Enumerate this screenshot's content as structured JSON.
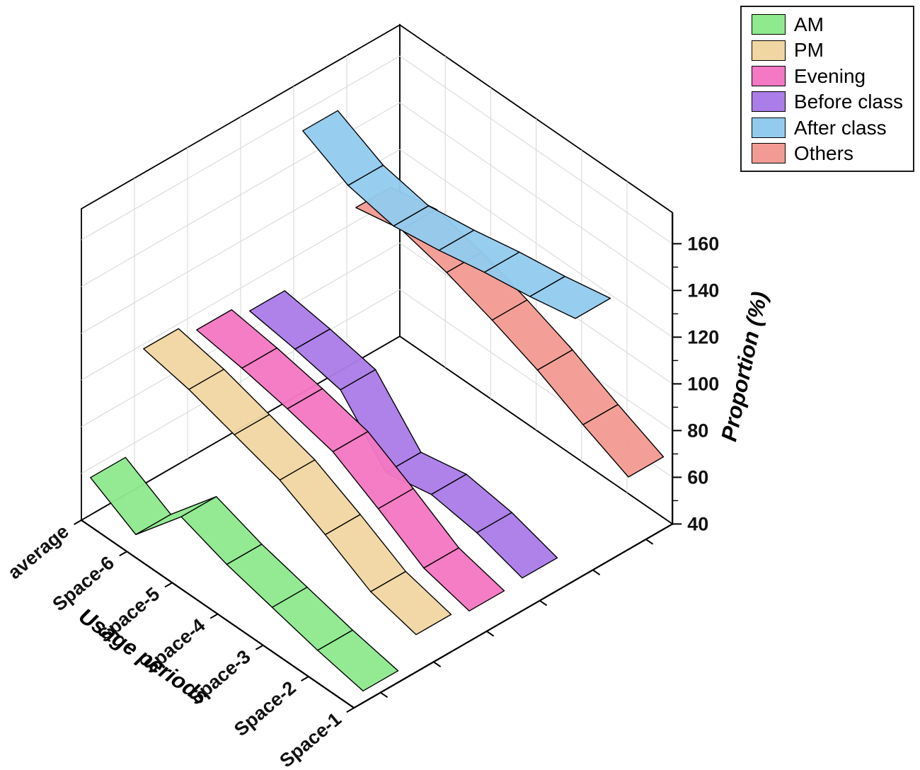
{
  "chart_data": {
    "type": "ribbon3d",
    "title": "",
    "xlabel": "Usage periods",
    "zlabel": "Proportion (%)",
    "categories": [
      "average",
      "Space-6",
      "Space-5",
      "Space-4",
      "Space-3",
      "Space-2",
      "Space-1"
    ],
    "series": [
      {
        "name": "AM",
        "color": "#8FE98F",
        "values": [
          56,
          45,
          66,
          59,
          54,
          49,
          45
        ]
      },
      {
        "name": "PM",
        "color": "#F0D6A2",
        "values": [
          98,
          94,
          88,
          82,
          72,
          61,
          56
        ]
      },
      {
        "name": "Evening",
        "color": "#F478C3",
        "values": [
          93,
          90,
          86,
          81,
          70,
          58,
          53
        ]
      },
      {
        "name": "Before class",
        "color": "#AB7DE8",
        "values": [
          88,
          85,
          81,
          59,
          63,
          60,
          54
        ]
      },
      {
        "name": "After class",
        "color": "#93CBEE",
        "values": [
          152,
          142,
          138,
          141,
          145,
          148,
          152
        ]
      },
      {
        "name": "Others",
        "color": "#F29B93",
        "values": [
          106,
          110,
          105,
          98,
          90,
          80,
          71
        ]
      }
    ],
    "z_axis": {
      "min": 40,
      "max": 160,
      "tick_step": 20
    },
    "z_tick_labels": [
      "40",
      "60",
      "80",
      "100",
      "120",
      "140",
      "160"
    ],
    "legend": {
      "position": "top-right"
    },
    "grid": true
  }
}
